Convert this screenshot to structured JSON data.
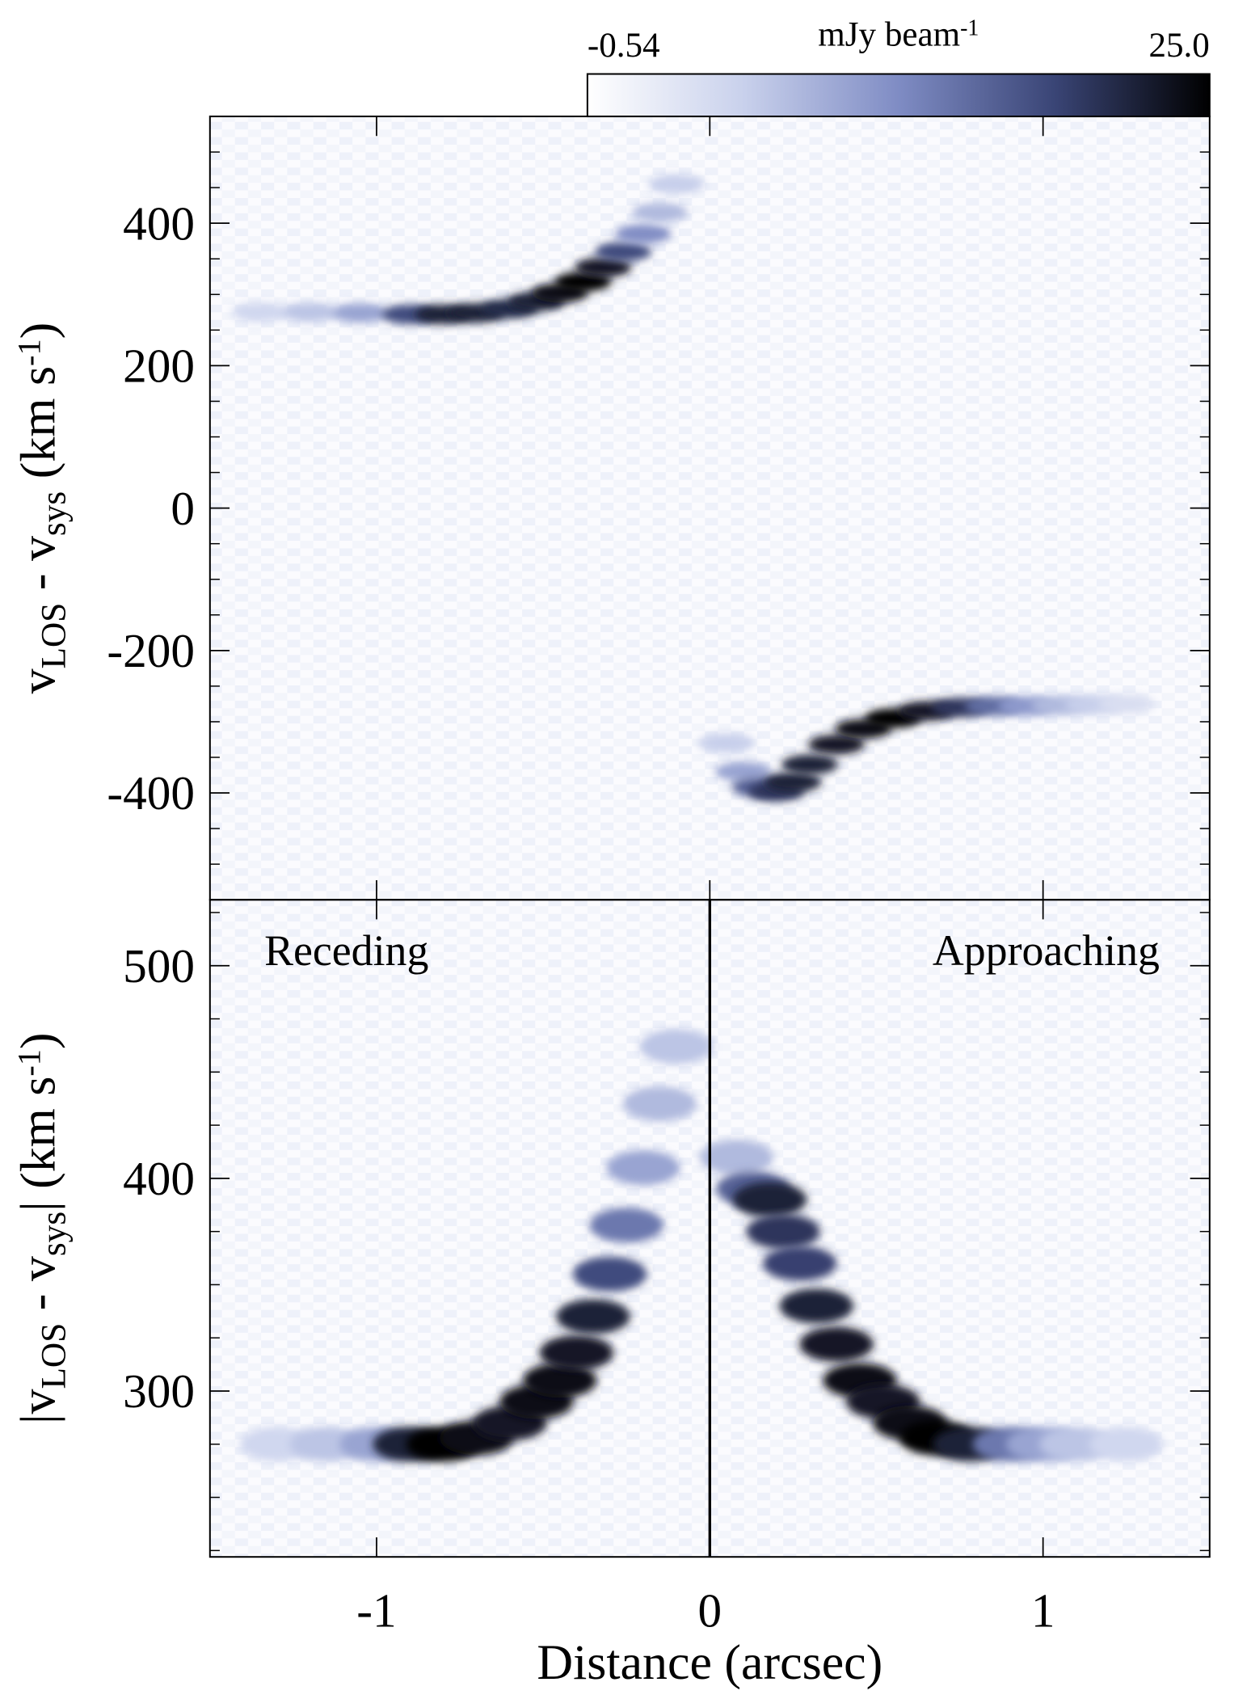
{
  "chart_data": [
    {
      "type": "heatmap",
      "xlim": [
        -1.5,
        1.5
      ],
      "xticks": [
        -1,
        0,
        1
      ],
      "ylim": [
        -550,
        550
      ],
      "yticks": [
        -400,
        -200,
        0,
        200,
        400
      ],
      "yminorticks": [
        -500,
        -450,
        -350,
        -300,
        -250,
        -150,
        -100,
        -50,
        50,
        100,
        150,
        250,
        300,
        350,
        450,
        500
      ],
      "ylabel": [
        {
          "text": "v"
        },
        {
          "sub": "LOS"
        },
        {
          "text": " - v"
        },
        {
          "sub": "sys"
        },
        {
          "text": " (km s"
        },
        {
          "sup": "-1"
        },
        {
          "text": ")"
        }
      ],
      "colorbar": {
        "label": [
          {
            "text": "mJy beam"
          },
          {
            "sup": "-1"
          }
        ],
        "lim": [
          -0.54,
          25
        ],
        "ticks": [
          -0.54,
          {
            "value": 25,
            "label": "25.0"
          }
        ],
        "colormap": [
          "#ffffff",
          "#c9d1ec",
          "#7f8cc4",
          "#3a4576",
          "#000000"
        ]
      },
      "series": [
        {
          "x": [
            -1.35,
            -1.2,
            -1.05,
            -0.9,
            -0.8,
            -0.7,
            -0.6,
            -0.52,
            -0.45,
            -0.38,
            -0.32,
            -0.26,
            -0.2,
            -0.15,
            -0.1
          ],
          "values": [
            275,
            275,
            274,
            272,
            272,
            274,
            280,
            290,
            302,
            318,
            338,
            360,
            385,
            415,
            455
          ],
          "intensity": [
            5,
            7,
            10,
            18,
            22,
            22,
            21,
            22,
            24,
            25,
            23,
            18,
            12,
            8,
            6
          ]
        },
        {
          "x": [
            0.05,
            0.1,
            0.15,
            0.2,
            0.25,
            0.3,
            0.38,
            0.46,
            0.55,
            0.65,
            0.75,
            0.85,
            0.95,
            1.05,
            1.15,
            1.25
          ],
          "values": [
            -330,
            -370,
            -392,
            -398,
            -385,
            -360,
            -332,
            -310,
            -295,
            -285,
            -280,
            -278,
            -278,
            -277,
            -276,
            -275
          ],
          "intensity": [
            6,
            10,
            16,
            20,
            22,
            22,
            23,
            24,
            25,
            23,
            20,
            15,
            11,
            8,
            6,
            4
          ]
        }
      ]
    },
    {
      "type": "heatmap",
      "xlim": [
        -1.5,
        1.5
      ],
      "xticks": [
        -1,
        0,
        1
      ],
      "xlabel": "Distance (arcsec)",
      "ylim": [
        222,
        531
      ],
      "yticks": [
        300,
        400,
        500
      ],
      "yminorticks": [
        225,
        250,
        275,
        325,
        350,
        375,
        425,
        450,
        475,
        525
      ],
      "ylabel": [
        {
          "text": "|v"
        },
        {
          "sub": "LOS"
        },
        {
          "text": " - v"
        },
        {
          "sub": "sys"
        },
        {
          "text": "| (km s"
        },
        {
          "sup": "-1"
        },
        {
          "text": ")"
        }
      ],
      "vline": 0,
      "annotations": [
        "Receding",
        "Approaching"
      ],
      "series": [
        {
          "x": [
            -1.3,
            -1.15,
            -1.0,
            -0.9,
            -0.8,
            -0.7,
            -0.6,
            -0.52,
            -0.45,
            -0.4,
            -0.35,
            -0.3,
            -0.25,
            -0.2,
            -0.15,
            -0.1
          ],
          "values": [
            275,
            275,
            275,
            275,
            275,
            278,
            285,
            295,
            305,
            318,
            335,
            355,
            378,
            405,
            435,
            462
          ],
          "intensity": [
            5,
            7,
            10,
            22,
            25,
            24,
            23,
            24,
            24,
            23,
            22,
            18,
            14,
            10,
            8,
            7
          ]
        },
        {
          "x": [
            0.08,
            0.13,
            0.18,
            0.22,
            0.27,
            0.32,
            0.38,
            0.45,
            0.52,
            0.6,
            0.68,
            0.78,
            0.9,
            1.0,
            1.1,
            1.25
          ],
          "values": [
            410,
            395,
            390,
            375,
            360,
            340,
            322,
            305,
            295,
            285,
            278,
            275,
            275,
            275,
            275,
            275
          ],
          "intensity": [
            8,
            16,
            22,
            20,
            19,
            22,
            23,
            24,
            23,
            24,
            25,
            22,
            14,
            10,
            7,
            5
          ]
        }
      ]
    }
  ]
}
